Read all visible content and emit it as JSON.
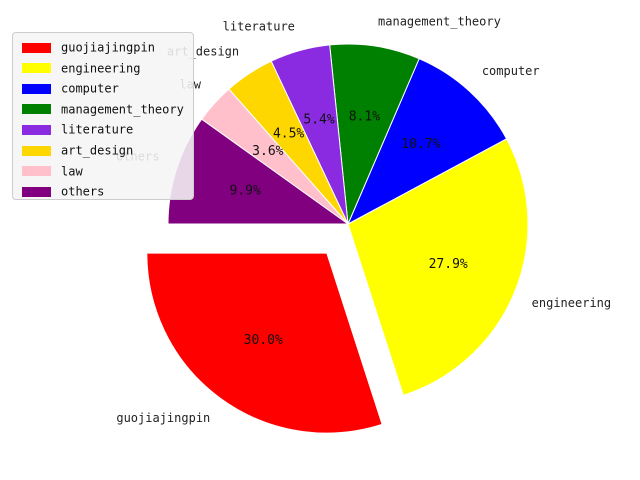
{
  "chart_data": {
    "type": "pie",
    "title": "",
    "legend_position": "top-left",
    "slices": [
      {
        "label": "guojiajingpin",
        "value": 30.0,
        "pct_label": "30.0%",
        "color": "#ff0000",
        "explode": true
      },
      {
        "label": "engineering",
        "value": 27.9,
        "pct_label": "27.9%",
        "color": "#ffff00",
        "explode": false
      },
      {
        "label": "computer",
        "value": 10.7,
        "pct_label": "10.7%",
        "color": "#0000ff",
        "explode": false
      },
      {
        "label": "management_theory",
        "value": 8.1,
        "pct_label": "8.1%",
        "color": "#008000",
        "explode": false
      },
      {
        "label": "literature",
        "value": 5.4,
        "pct_label": "5.4%",
        "color": "#8a2be2",
        "explode": false
      },
      {
        "label": "art_design",
        "value": 4.5,
        "pct_label": "4.5%",
        "color": "#ffd700",
        "explode": false
      },
      {
        "label": "law",
        "value": 3.6,
        "pct_label": "3.6%",
        "color": "#ffc0cb",
        "explode": false
      },
      {
        "label": "others",
        "value": 9.9,
        "pct_label": "9.9%",
        "color": "#800080",
        "explode": false
      }
    ]
  }
}
